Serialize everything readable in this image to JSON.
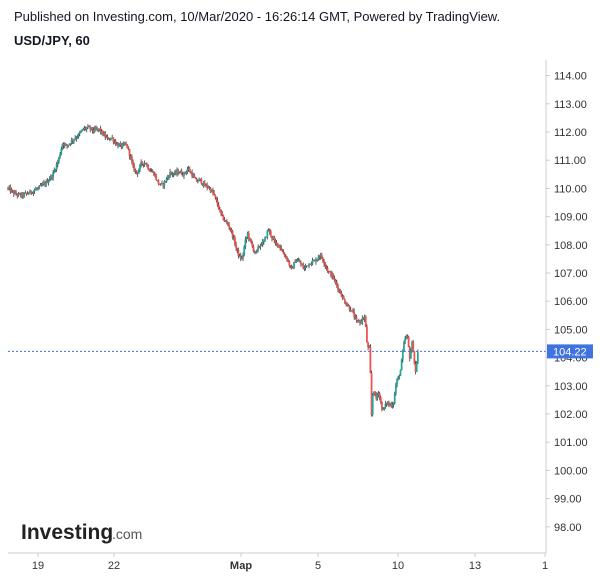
{
  "header": {
    "published": "Published on Investing.com, 10/Mar/2020 - 16:26:14 GMT, Powered by TradingView.",
    "symbol": "USD/JPY, 60"
  },
  "logo": {
    "main": "Investing",
    "suffix": ".com"
  },
  "colors": {
    "up": "#26a69a",
    "down": "#ef5350",
    "wick": "#3a3a3a",
    "last_price_bg": "#3f73e0",
    "axis": "#cccccc"
  },
  "chart_data": {
    "type": "candlestick",
    "title": "USD/JPY, 60",
    "xlabel": "",
    "ylabel": "",
    "ylim": [
      97.2,
      114.6
    ],
    "y_ticks": [
      "98.00",
      "99.00",
      "100.00",
      "101.00",
      "102.00",
      "103.00",
      "104.00",
      "105.00",
      "106.00",
      "107.00",
      "108.00",
      "109.00",
      "110.00",
      "111.00",
      "112.00",
      "113.00",
      "114.00"
    ],
    "x_ticks": [
      "19",
      "22",
      "Мар",
      "5",
      "10",
      "13",
      "1"
    ],
    "last_price": 104.22,
    "last_price_label": "104.22",
    "series": [
      {
        "close_path": [
          [
            0,
            110.0
          ],
          [
            5,
            109.8
          ],
          [
            10,
            109.75
          ],
          [
            16,
            109.85
          ],
          [
            22,
            110.0
          ],
          [
            28,
            110.2
          ],
          [
            33,
            110.5
          ],
          [
            37,
            111.0
          ],
          [
            40,
            111.6
          ],
          [
            43,
            111.5
          ],
          [
            47,
            111.7
          ],
          [
            52,
            111.9
          ],
          [
            55,
            112.1
          ],
          [
            59,
            112.15
          ],
          [
            63,
            112.05
          ],
          [
            67,
            112.1
          ],
          [
            70,
            111.9
          ],
          [
            73,
            111.75
          ],
          [
            76,
            111.8
          ],
          [
            80,
            111.55
          ],
          [
            83,
            111.5
          ],
          [
            87,
            111.55
          ],
          [
            90,
            111.1
          ],
          [
            92,
            110.7
          ],
          [
            95,
            110.55
          ],
          [
            98,
            110.9
          ],
          [
            101,
            110.9
          ],
          [
            104,
            110.65
          ],
          [
            107,
            110.55
          ],
          [
            110,
            110.2
          ],
          [
            113,
            110.1
          ],
          [
            116,
            110.3
          ],
          [
            119,
            110.55
          ],
          [
            122,
            110.5
          ],
          [
            125,
            110.6
          ],
          [
            129,
            110.5
          ],
          [
            132,
            110.7
          ],
          [
            135,
            110.5
          ],
          [
            138,
            110.25
          ],
          [
            141,
            110.3
          ],
          [
            144,
            110.1
          ],
          [
            147,
            110.05
          ],
          [
            151,
            109.8
          ],
          [
            154,
            109.4
          ],
          [
            157,
            109.0
          ],
          [
            160,
            108.8
          ],
          [
            163,
            108.6
          ],
          [
            166,
            108.15
          ],
          [
            168,
            107.8
          ],
          [
            170,
            107.55
          ],
          [
            172,
            107.5
          ],
          [
            174,
            108.1
          ],
          [
            176,
            108.4
          ],
          [
            178,
            108.1
          ],
          [
            180,
            107.85
          ],
          [
            182,
            107.7
          ],
          [
            185,
            108.0
          ],
          [
            188,
            108.1
          ],
          [
            191,
            108.55
          ],
          [
            193,
            108.35
          ],
          [
            196,
            108.05
          ],
          [
            199,
            108.0
          ],
          [
            202,
            107.7
          ],
          [
            205,
            107.5
          ],
          [
            208,
            107.1
          ],
          [
            211,
            107.45
          ],
          [
            214,
            107.4
          ],
          [
            217,
            107.15
          ],
          [
            220,
            107.3
          ],
          [
            223,
            107.4
          ],
          [
            226,
            107.45
          ],
          [
            229,
            107.65
          ],
          [
            232,
            107.4
          ],
          [
            235,
            107.05
          ],
          [
            238,
            106.9
          ],
          [
            241,
            106.6
          ],
          [
            244,
            106.3
          ],
          [
            247,
            106.0
          ],
          [
            250,
            105.8
          ],
          [
            253,
            105.6
          ],
          [
            256,
            105.25
          ],
          [
            259,
            105.3
          ],
          [
            262,
            105.45
          ],
          [
            264,
            104.25
          ],
          [
            265,
            104.5
          ],
          [
            266,
            103.5
          ],
          [
            267,
            101.8
          ],
          [
            268,
            103.0
          ],
          [
            270,
            102.5
          ],
          [
            272,
            102.8
          ],
          [
            275,
            102.1
          ],
          [
            278,
            102.4
          ],
          [
            281,
            102.3
          ],
          [
            283,
            102.4
          ],
          [
            285,
            103.1
          ],
          [
            288,
            103.5
          ],
          [
            291,
            104.6
          ],
          [
            293,
            104.8
          ],
          [
            295,
            104.0
          ],
          [
            297,
            104.6
          ],
          [
            299,
            103.4
          ],
          [
            301,
            104.22
          ]
        ]
      }
    ]
  }
}
